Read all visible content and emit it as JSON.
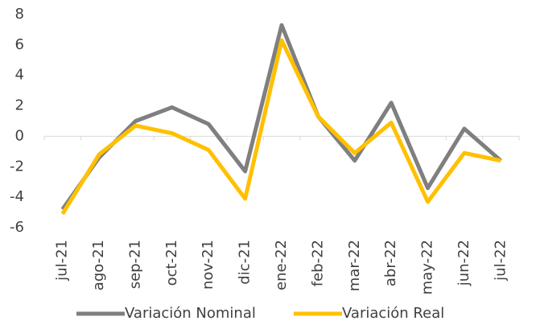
{
  "chart_data": {
    "type": "line",
    "categories": [
      "jul-21",
      "ago-21",
      "sep-21",
      "oct-21",
      "nov-21",
      "dic-21",
      "ene-22",
      "feb-22",
      "mar-22",
      "abr-22",
      "may-22",
      "jun-22",
      "jul-22"
    ],
    "series": [
      {
        "name": "Variación Nominal",
        "color": "#7f7f7f",
        "values": [
          -4.8,
          -1.4,
          1.0,
          1.9,
          0.8,
          -2.3,
          7.3,
          1.3,
          -1.6,
          2.2,
          -3.4,
          0.5,
          -1.6
        ]
      },
      {
        "name": "Variación Real",
        "color": "#ffc000",
        "values": [
          -5.1,
          -1.2,
          0.7,
          0.2,
          -0.9,
          -4.1,
          6.3,
          1.3,
          -1.1,
          0.9,
          -4.3,
          -1.1,
          -1.6
        ]
      }
    ],
    "ylim": [
      -6,
      8
    ],
    "yticks": [
      -6,
      -4,
      -2,
      0,
      2,
      4,
      6,
      8
    ],
    "grid": false,
    "legend": "bottom"
  }
}
